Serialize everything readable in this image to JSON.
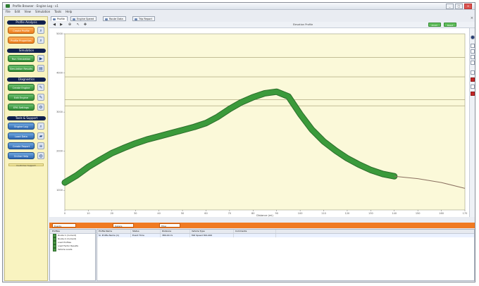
{
  "window": {
    "title": "Profile Browser - Engine Log - v1",
    "buttons": {
      "minimize": "_",
      "maximize": "□",
      "close": "×"
    }
  },
  "menu": [
    "File",
    "Edit",
    "View",
    "Simulation",
    "Tools",
    "Help"
  ],
  "sidebar": {
    "sections": [
      {
        "header": "Profile Analysis",
        "buttons": [
          {
            "label": "Create Profile",
            "color": "#ec7d1d",
            "icon": "magnifier-icon"
          },
          {
            "label": "Profile Properties",
            "color": "#ec7d1d",
            "icon": "magnifier-icon"
          }
        ]
      },
      {
        "header": "Simulation",
        "buttons": [
          {
            "label": "Run Simulation",
            "color": "#2f8a34",
            "icon": "run-icon"
          },
          {
            "label": "Simulation Results",
            "color": "#2f8a34",
            "icon": "chart-icon"
          }
        ]
      },
      {
        "header": "Diagnostics",
        "buttons": [
          {
            "label": "Create Engine Profile",
            "color": "#2f8a34",
            "icon": "wrench-icon"
          },
          {
            "label": "Edit Engine",
            "color": "#2f8a34",
            "icon": "wrench-icon"
          },
          {
            "label": "EPA Settings",
            "color": "#2f8a34",
            "icon": "gear-icon"
          }
        ]
      },
      {
        "header": "Tools & Support",
        "buttons": [
          {
            "label": "Engine Log",
            "color": "#2f67b0",
            "icon": "search-icon"
          },
          {
            "label": "Load Data",
            "color": "#2f67b0",
            "icon": "folder-icon"
          },
          {
            "label": "Create Report",
            "color": "#2f67b0",
            "icon": "report-icon"
          },
          {
            "label": "Online Help",
            "color": "#2f67b0",
            "icon": "globe-icon"
          }
        ]
      }
    ],
    "footer": "Customer Support"
  },
  "tabs": [
    {
      "label": "Profile",
      "active": true
    },
    {
      "label": "Engine Speed",
      "active": false
    },
    {
      "label": "Route Data",
      "active": false
    },
    {
      "label": "Trip Report",
      "active": false
    }
  ],
  "chart_toolbar": {
    "title": "Elevation Profile",
    "green_buttons": [
      "Zoom",
      "Reset"
    ]
  },
  "chart_data": {
    "type": "line",
    "title": "Elevation Profile",
    "xlabel": "Distance (mi)",
    "ylabel": "",
    "x_ticks": [
      "0",
      "10",
      "20",
      "30",
      "40",
      "50",
      "60",
      "70",
      "80",
      "90",
      "100",
      "110",
      "120",
      "130",
      "140",
      "150",
      "160",
      "170"
    ],
    "y_ticks": [
      "1000",
      "2000",
      "3000",
      "4000",
      "5000"
    ],
    "xlim": [
      0,
      170
    ],
    "ylim": [
      500,
      5000
    ],
    "grid": false,
    "series": [
      {
        "name": "",
        "color": "#3b9a3b",
        "x": [
          0,
          5,
          10,
          15,
          20,
          25,
          30,
          35,
          40,
          45,
          50,
          55,
          60,
          65,
          70,
          75,
          80,
          85,
          90,
          95,
          100,
          105,
          110,
          115,
          120,
          125,
          130,
          135,
          140
        ],
        "y": [
          1200,
          1380,
          1600,
          1780,
          1950,
          2080,
          2200,
          2300,
          2380,
          2460,
          2540,
          2620,
          2720,
          2880,
          3080,
          3250,
          3380,
          3480,
          3520,
          3400,
          2950,
          2550,
          2250,
          2020,
          1820,
          1660,
          1520,
          1420,
          1360
        ]
      },
      {
        "name": "",
        "color": "#8a7060",
        "x": [
          140,
          150,
          160,
          170
        ],
        "y": [
          1360,
          1300,
          1200,
          1050
        ]
      }
    ]
  },
  "bottom_panel": {
    "tabs": [
      "Events",
      "Details",
      "Filter"
    ],
    "tree_header": "Profiles",
    "tree_items": [
      "Route 1 (Current)",
      "Route 2 (Current)",
      "Load Profiles",
      "Load Factor Results",
      "Vehicle Loads"
    ],
    "columns": [
      "Profile Name",
      "Status",
      "Distance",
      "Vehicle Type",
      "Comments"
    ],
    "rows": [
      [
        "Sr. Profile Name (1)",
        "Event Time",
        "380.00 mi",
        "Mid Speed 300-400",
        ""
      ]
    ]
  }
}
